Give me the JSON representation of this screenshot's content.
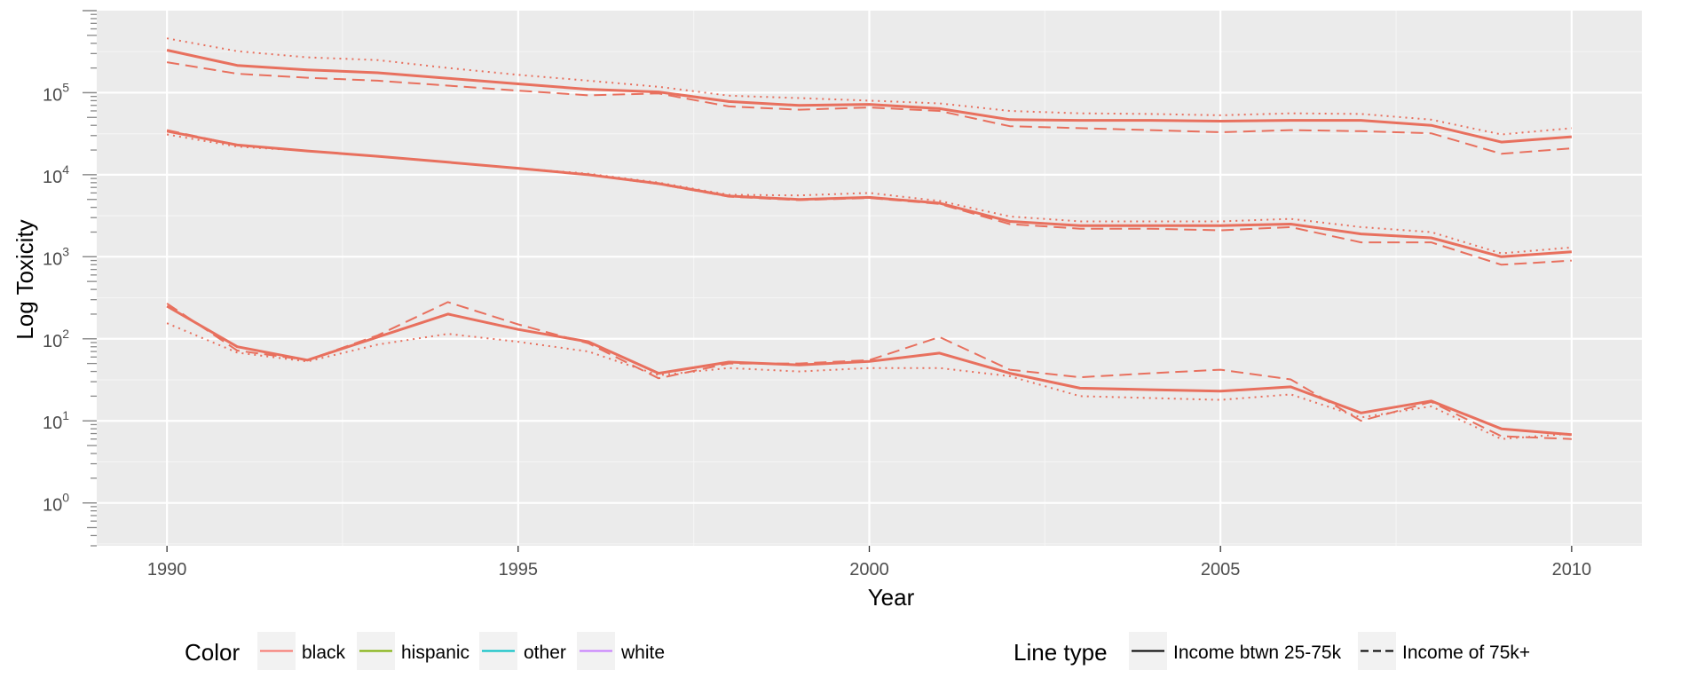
{
  "chart_data": {
    "type": "line",
    "xlabel": "Year",
    "ylabel": "Log Toxicity",
    "y_scale": "log10",
    "xlim": [
      1989,
      2011
    ],
    "ylim": [
      0.3,
      1000000
    ],
    "x_ticks": [
      1990,
      1995,
      2000,
      2005,
      2010
    ],
    "x_tick_labels": [
      "1990",
      "1995",
      "2000",
      "2005",
      "2010"
    ],
    "y_ticks": [
      {
        "base": "10",
        "exp": "0",
        "value": 1
      },
      {
        "base": "10",
        "exp": "1",
        "value": 10
      },
      {
        "base": "10",
        "exp": "2",
        "value": 100
      },
      {
        "base": "10",
        "exp": "3",
        "value": 1000
      },
      {
        "base": "10",
        "exp": "4",
        "value": 10000
      },
      {
        "base": "10",
        "exp": "5",
        "value": 100000
      }
    ],
    "grid": true,
    "legend_position": "bottom",
    "x": [
      1990,
      1991,
      1992,
      1993,
      1994,
      1995,
      1996,
      1997,
      1998,
      1999,
      2000,
      2001,
      2002,
      2003,
      2004,
      2005,
      2006,
      2007,
      2008,
      2009,
      2010
    ],
    "series": [
      {
        "color": "black",
        "linetype": "Income btwn 25-75k",
        "values": [
          330000,
          215000,
          190000,
          175000,
          150000,
          128000,
          110000,
          102000,
          78000,
          70000,
          72000,
          64000,
          47000,
          46000,
          46000,
          45000,
          46000,
          46000,
          40000,
          25000,
          29000
        ]
      },
      {
        "color": "black",
        "linetype": "Income of 75k+",
        "values": [
          235000,
          170000,
          152000,
          140000,
          122000,
          106000,
          93000,
          98000,
          68000,
          62000,
          66000,
          60000,
          39000,
          37000,
          35000,
          33000,
          35000,
          34000,
          32000,
          18000,
          21000
        ]
      },
      {
        "color": "black",
        "linetype": "dotted",
        "values": [
          460000,
          320000,
          270000,
          250000,
          200000,
          165000,
          140000,
          118000,
          92000,
          86000,
          80000,
          74000,
          60000,
          56000,
          55000,
          53000,
          56000,
          55000,
          47000,
          31000,
          37000
        ]
      },
      {
        "color": "black",
        "linetype": "Income btwn 25-75k",
        "values": [
          34000,
          23000,
          19500,
          16800,
          14200,
          12000,
          10000,
          7800,
          5500,
          5000,
          5300,
          4500,
          2700,
          2400,
          2400,
          2400,
          2500,
          1900,
          1700,
          1000,
          1150
        ]
      },
      {
        "color": "black",
        "linetype": "Income of 75k+",
        "values": [
          35000,
          23000,
          19500,
          16800,
          14200,
          12000,
          10000,
          7700,
          5400,
          4900,
          5200,
          4400,
          2500,
          2200,
          2200,
          2100,
          2300,
          1500,
          1500,
          800,
          900
        ]
      },
      {
        "color": "black",
        "linetype": "dotted",
        "values": [
          31000,
          22000,
          19500,
          16800,
          14200,
          12000,
          10300,
          8000,
          5700,
          5600,
          6000,
          4800,
          3100,
          2700,
          2700,
          2700,
          2900,
          2300,
          2000,
          1100,
          1300
        ]
      },
      {
        "color": "black",
        "linetype": "Income btwn 25-75k",
        "values": [
          250,
          80,
          55,
          105,
          200,
          130,
          92,
          38,
          52,
          48,
          53,
          67,
          38,
          25,
          24,
          23,
          26,
          12.5,
          17.5,
          8,
          6.8
        ]
      },
      {
        "color": "black",
        "linetype": "Income of 75k+",
        "values": [
          270,
          72,
          55,
          110,
          280,
          150,
          88,
          33,
          50,
          50,
          55,
          105,
          42,
          34,
          38,
          42,
          32,
          10,
          17,
          6.5,
          6
        ]
      },
      {
        "color": "black",
        "linetype": "dotted",
        "values": [
          155,
          68,
          53,
          85,
          115,
          92,
          70,
          36,
          44,
          40,
          44,
          44,
          35,
          20,
          19,
          18,
          21,
          11,
          15,
          6,
          7
        ]
      }
    ]
  },
  "legend_color": {
    "title": "Color",
    "items": [
      {
        "label": "black",
        "color": "#F8766D"
      },
      {
        "label": "hispanic",
        "color": "#7CAE00"
      },
      {
        "label": "other",
        "color": "#00BFC4"
      },
      {
        "label": "white",
        "color": "#C77CFF"
      }
    ]
  },
  "legend_linetype": {
    "title": "Line type",
    "items": [
      {
        "label": "Income btwn 25-75k",
        "dash": "solid"
      },
      {
        "label": "Income of 75k+",
        "dash": "dashed"
      }
    ]
  },
  "colors": {
    "panel_bg": "#EBEBEB",
    "grid_major": "#FFFFFF",
    "line": "#E8705E",
    "key_bg": "#F2F2F2"
  }
}
